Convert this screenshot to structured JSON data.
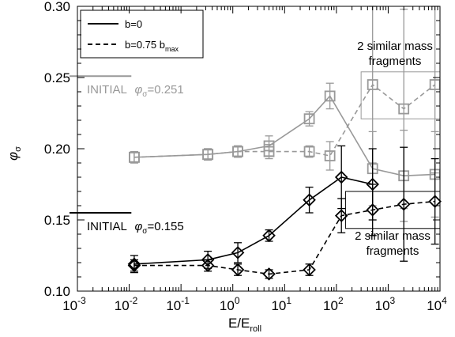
{
  "chart_data": {
    "type": "line",
    "x_scale": "log",
    "xlim": [
      0.001,
      10000
    ],
    "ylim": [
      0.1,
      0.3
    ],
    "x_ticks": [
      0.001,
      0.01,
      0.1,
      1,
      10,
      100,
      1000,
      10000
    ],
    "x_tick_labels": [
      {
        "base": "10",
        "exp": "-3"
      },
      {
        "base": "10",
        "exp": "-2"
      },
      {
        "base": "10",
        "exp": "-1"
      },
      {
        "base": "10",
        "exp": "0"
      },
      {
        "base": "10",
        "exp": "1"
      },
      {
        "base": "10",
        "exp": "2"
      },
      {
        "base": "10",
        "exp": "3"
      },
      {
        "base": "10",
        "exp": "4"
      }
    ],
    "y_ticks": [
      0.1,
      0.15,
      0.2,
      0.25,
      0.3
    ],
    "y_tick_labels": [
      "0.10",
      "0.15",
      "0.20",
      "0.25",
      "0.30"
    ],
    "xlabel": {
      "main": "E/E",
      "sub": "roll"
    },
    "ylabel": {
      "main": "φ",
      "sub": "σ"
    },
    "legend": {
      "placement": "top-left",
      "entries": [
        {
          "label": "b=0",
          "style": "solid"
        },
        {
          "label": "b=0.75 b",
          "sub": "max",
          "style": "dashed"
        }
      ]
    },
    "series": [
      {
        "name": "b=0",
        "group": "gray",
        "style": "solid",
        "marker": "square",
        "color": "#999999",
        "x": [
          0.0125,
          0.33,
          1.25,
          5,
          30,
          75,
          500,
          2000,
          8000
        ],
        "y": [
          0.194,
          0.196,
          0.198,
          0.202,
          0.221,
          0.237,
          0.186,
          0.181,
          0.182
        ],
        "err": [
          0.004,
          0.004,
          0.004,
          0.007,
          0.005,
          0.009,
          0.026,
          0.032,
          0.03
        ]
      },
      {
        "name": "b=0.75 bmax",
        "group": "gray",
        "style": "dashed",
        "marker": "square",
        "color": "#999999",
        "x": [
          0.0125,
          0.33,
          1.25,
          5,
          30,
          75,
          500,
          2000,
          8000
        ],
        "y": [
          0.194,
          0.196,
          0.198,
          0.198,
          0.198,
          0.195,
          0.245,
          0.228,
          0.245
        ],
        "err": [
          0.004,
          0.004,
          0.004,
          0.005,
          0.004,
          0.01,
          0.055,
          0.07,
          0.062
        ]
      },
      {
        "name": "b=0",
        "group": "black",
        "style": "solid",
        "marker": "diamond",
        "color": "#000000",
        "x": [
          0.0125,
          0.33,
          1.25,
          5,
          30,
          125,
          500
        ],
        "y": [
          0.119,
          0.122,
          0.127,
          0.139,
          0.164,
          0.18,
          0.175
        ],
        "err": [
          0.006,
          0.006,
          0.007,
          0.004,
          0.009,
          0.022,
          0.025
        ]
      },
      {
        "name": "b=0.75 bmax",
        "group": "black",
        "style": "dashed",
        "marker": "diamond",
        "color": "#000000",
        "x": [
          0.0125,
          0.33,
          1.25,
          5,
          30,
          125,
          500,
          2000,
          8000
        ],
        "y": [
          0.118,
          0.118,
          0.115,
          0.112,
          0.115,
          0.153,
          0.157,
          0.161,
          0.163
        ],
        "err": [
          0.004,
          0.004,
          0.004,
          0.003,
          0.004,
          0.012,
          0.018,
          0.04,
          0.03
        ]
      }
    ],
    "reference_lines": [
      {
        "y": 0.251,
        "x_from": 0.001,
        "x_to": 0.011,
        "color": "#999999"
      },
      {
        "y": 0.155,
        "x_from": 0.001,
        "x_to": 0.011,
        "color": "#000000"
      }
    ],
    "annotations": [
      {
        "text": "INITIAL",
        "symbol": "φ",
        "sub": "σ",
        "value": "=0.251",
        "color": "#999999"
      },
      {
        "text": "INITIAL",
        "symbol": "φ",
        "sub": "σ",
        "value": "=0.155",
        "color": "#000000"
      },
      {
        "text": "2 similar mass",
        "text2": "fragments",
        "color": "#000000",
        "group": "gray"
      },
      {
        "text": "2 similar mass",
        "text2": "fragments",
        "color": "#000000",
        "group": "black"
      }
    ],
    "boxes": [
      {
        "x_from": 300,
        "x_to": 10000,
        "y_from": 0.221,
        "y_to": 0.254,
        "color": "#999999"
      },
      {
        "x_from": 150,
        "x_to": 10000,
        "y_from": 0.144,
        "y_to": 0.17,
        "color": "#000000"
      }
    ]
  }
}
